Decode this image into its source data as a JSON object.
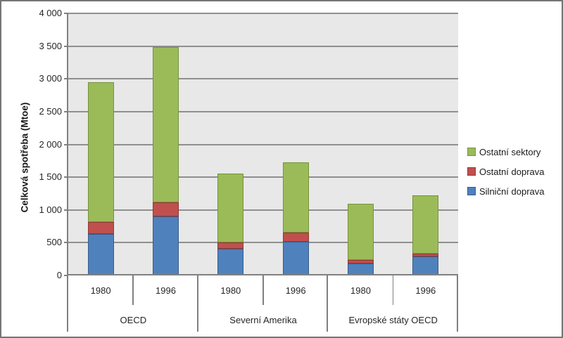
{
  "figure": {
    "background": "#FFFFFF",
    "border_color": "#757575"
  },
  "chart_data": {
    "type": "bar",
    "stacked": true,
    "title": "",
    "xlabel": "",
    "ylabel": "Celková spotřeba (Mtoe)",
    "ylim": [
      0,
      4000
    ],
    "ytick_step": 500,
    "ytick_labels": [
      "0",
      "500",
      "1 000",
      "1 500",
      "2 000",
      "2 500",
      "3 000",
      "3 500",
      "4 000"
    ],
    "grid": "horizontal",
    "plot_bg": "#E8E8E8",
    "gridline_color": "#8F8F8F",
    "axis_color": "#808080",
    "series": [
      {
        "name": "Silniční doprava",
        "color": "#4F81BD",
        "border": "#385D8A"
      },
      {
        "name": "Ostatní doprava",
        "color": "#C0504D",
        "border": "#953735"
      },
      {
        "name": "Ostatní sektory",
        "color": "#9BBB59",
        "border": "#77933C"
      }
    ],
    "groups": [
      {
        "label": "OECD",
        "bars": [
          {
            "label": "1980",
            "values": [
              630,
              190,
              2130
            ]
          },
          {
            "label": "1996",
            "values": [
              900,
              210,
              2370
            ]
          }
        ]
      },
      {
        "label": "Severní Amerika",
        "bars": [
          {
            "label": "1980",
            "values": [
              410,
              90,
              1050
            ]
          },
          {
            "label": "1996",
            "values": [
              515,
              140,
              1070
            ]
          }
        ]
      },
      {
        "label": "Evropské státy OECD",
        "bars": [
          {
            "label": "1980",
            "values": [
              180,
              55,
              860
            ]
          },
          {
            "label": "1996",
            "values": [
              285,
              50,
              885
            ]
          }
        ]
      }
    ],
    "legend": {
      "position": "right",
      "items": [
        "Ostatní sektory",
        "Ostatní doprava",
        "Silniční doprava"
      ]
    }
  }
}
